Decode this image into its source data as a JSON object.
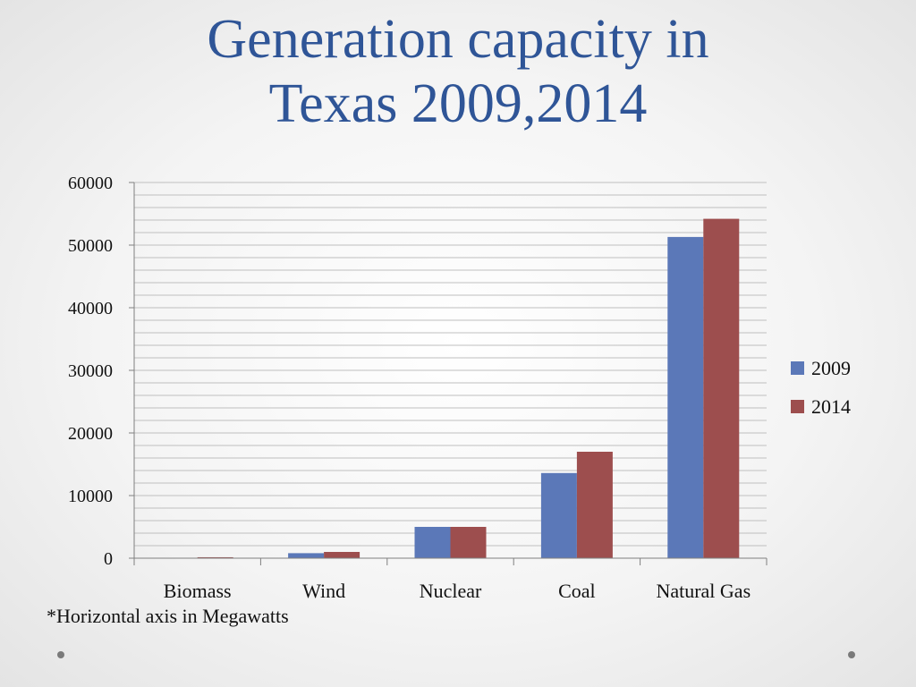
{
  "slide": {
    "title_line1": "Generation capacity in",
    "title_line2": "Texas 2009,2014",
    "footnote": "*Horizontal axis in Megawatts"
  },
  "colors": {
    "title": "#2f5597",
    "series_2009": "#5b78b8",
    "series_2014": "#9d4e4e",
    "grid": "#bfbfbf",
    "axis": "#808080"
  },
  "chart_data": {
    "type": "bar",
    "categories": [
      "Biomass",
      "Wind",
      "Nuclear",
      "Coal",
      "Natural Gas"
    ],
    "series": [
      {
        "name": "2009",
        "values": [
          50,
          800,
          5000,
          13600,
          51300
        ]
      },
      {
        "name": "2014",
        "values": [
          150,
          1000,
          5000,
          17000,
          54200
        ]
      }
    ],
    "yticks": [
      "0",
      "10000",
      "20000",
      "30000",
      "40000",
      "50000",
      "60000"
    ],
    "ylim": [
      0,
      60000
    ],
    "grid": true,
    "legend_position": "right"
  }
}
